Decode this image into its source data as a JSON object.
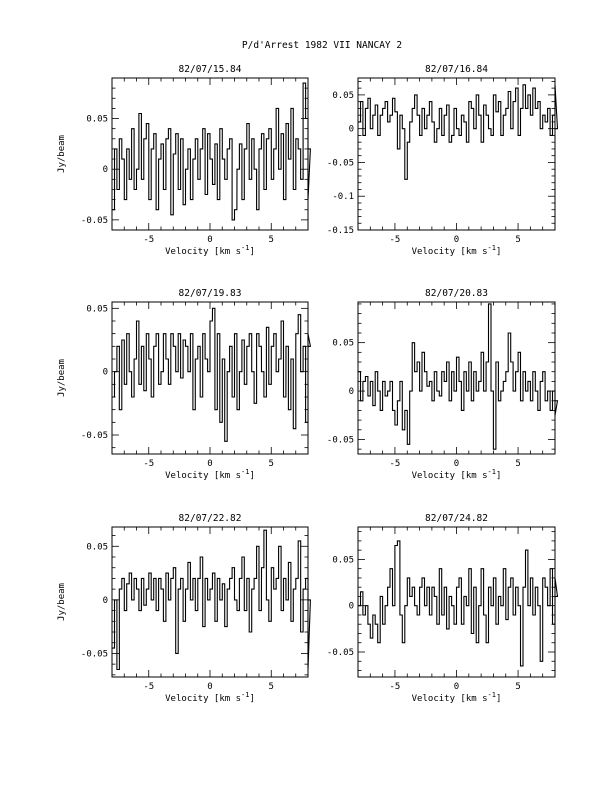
{
  "page_title": "P/d'Arrest 1982 VII   NANCAY      2",
  "chart_data": [
    {
      "type": "line",
      "title": "82/07/15.84",
      "xlabel": "Velocity [km s",
      "xlabel_sup": "-1",
      "xlabel_close": "]",
      "ylabel": "Jy/beam",
      "xlim": [
        -8,
        8
      ],
      "ylim": [
        -0.06,
        0.09
      ],
      "xticks": [
        -5,
        0,
        5
      ],
      "yticks": [
        -0.05,
        0,
        0.05
      ],
      "ytick_labels": [
        "-0.05",
        "0",
        "0.05"
      ],
      "x_start": -8,
      "x_step": 0.2,
      "values": [
        -0.04,
        0.02,
        -0.02,
        0.03,
        0.01,
        -0.03,
        0.02,
        -0.01,
        0.04,
        -0.02,
        0.0,
        0.055,
        -0.01,
        0.03,
        0.045,
        -0.03,
        0.02,
        0.035,
        -0.04,
        0.01,
        0.025,
        -0.02,
        0.03,
        0.04,
        -0.045,
        0.015,
        0.035,
        -0.02,
        0.03,
        -0.035,
        0.0,
        0.02,
        -0.03,
        0.01,
        0.03,
        -0.01,
        0.02,
        0.04,
        -0.025,
        0.035,
        0.01,
        -0.015,
        0.025,
        -0.03,
        0.04,
        0.01,
        -0.01,
        0.02,
        0.03,
        -0.05,
        -0.04,
        0.0,
        0.025,
        -0.03,
        0.02,
        0.045,
        -0.01,
        0.03,
        0.0,
        -0.04,
        0.02,
        0.035,
        -0.02,
        0.03,
        0.04,
        -0.01,
        0.02,
        0.06,
        0.0,
        0.035,
        -0.03,
        0.045,
        0.01,
        0.06,
        -0.02,
        0.03,
        0.02,
        -0.01,
        0.085,
        0.05,
        -0.03,
        0.02
      ]
    },
    {
      "type": "line",
      "title": "82/07/16.84",
      "xlabel": "Velocity [km s",
      "xlabel_sup": "-1",
      "xlabel_close": "]",
      "ylabel": "",
      "xlim": [
        -8,
        8
      ],
      "ylim": [
        -0.15,
        0.075
      ],
      "xticks": [
        -5,
        0,
        5
      ],
      "yticks": [
        -0.15,
        -0.1,
        -0.05,
        0,
        0.05
      ],
      "ytick_labels": [
        "-0.15",
        "-0.1",
        "-0.05",
        "0",
        "0.05"
      ],
      "x_start": -8,
      "x_step": 0.2,
      "values": [
        0.01,
        0.04,
        -0.01,
        0.03,
        0.045,
        0.0,
        0.02,
        0.035,
        -0.01,
        0.02,
        0.03,
        0.04,
        0.01,
        0.02,
        0.045,
        0.025,
        -0.03,
        0.02,
        0.0,
        -0.075,
        -0.02,
        0.01,
        0.03,
        0.05,
        0.02,
        -0.01,
        0.03,
        0.0,
        0.02,
        0.04,
        0.01,
        -0.02,
        0.0,
        0.03,
        -0.01,
        0.02,
        0.035,
        -0.02,
        -0.01,
        0.03,
        0.0,
        -0.01,
        0.02,
        0.01,
        -0.02,
        0.04,
        0.03,
        0.0,
        0.05,
        0.02,
        -0.02,
        0.035,
        0.02,
        0.0,
        -0.01,
        0.05,
        0.025,
        0.04,
        -0.01,
        0.02,
        0.03,
        0.055,
        0.0,
        0.04,
        0.06,
        -0.01,
        0.03,
        0.065,
        0.03,
        0.05,
        0.02,
        0.06,
        0.03,
        0.04,
        0.0,
        0.02,
        0.01,
        0.03,
        -0.01,
        0.02,
        0.065,
        0.0
      ]
    },
    {
      "type": "line",
      "title": "82/07/19.83",
      "xlabel": "Velocity [km s",
      "xlabel_sup": "-1",
      "xlabel_close": "]",
      "ylabel": "Jy/beam",
      "xlim": [
        -8,
        8
      ],
      "ylim": [
        -0.065,
        0.055
      ],
      "xticks": [
        -5,
        0,
        5
      ],
      "yticks": [
        -0.05,
        0,
        0.05
      ],
      "ytick_labels": [
        "-0.05",
        "0",
        "0.05"
      ],
      "x_start": -8,
      "x_step": 0.2,
      "values": [
        -0.02,
        0.0,
        0.02,
        -0.03,
        0.025,
        -0.01,
        0.03,
        0.0,
        -0.02,
        0.01,
        0.04,
        -0.01,
        0.02,
        -0.015,
        0.03,
        0.01,
        -0.02,
        0.02,
        0.03,
        -0.01,
        0.0,
        0.03,
        0.01,
        -0.01,
        0.03,
        0.02,
        0.0,
        0.03,
        -0.005,
        0.025,
        0.02,
        0.0,
        0.03,
        -0.03,
        0.01,
        0.02,
        -0.02,
        0.03,
        0.01,
        0.0,
        0.04,
        0.05,
        -0.03,
        0.03,
        -0.04,
        0.01,
        -0.055,
        0.0,
        0.02,
        -0.02,
        0.03,
        -0.03,
        0.0,
        0.025,
        -0.01,
        0.02,
        0.03,
        0.0,
        -0.025,
        0.03,
        0.02,
        0.0,
        -0.02,
        0.035,
        -0.01,
        0.02,
        0.03,
        0.0,
        0.01,
        0.04,
        -0.02,
        0.02,
        -0.03,
        0.01,
        -0.045,
        0.03,
        0.045,
        0.0,
        0.02,
        -0.04,
        0.03,
        0.02
      ]
    },
    {
      "type": "line",
      "title": "82/07/20.83",
      "xlabel": "Velocity [km s",
      "xlabel_sup": "-1",
      "xlabel_close": "]",
      "ylabel": "",
      "xlim": [
        -8,
        8
      ],
      "ylim": [
        -0.065,
        0.092
      ],
      "xticks": [
        -5,
        0,
        5
      ],
      "yticks": [
        -0.05,
        0,
        0.05
      ],
      "ytick_labels": [
        "-0.05",
        "0",
        "0.05"
      ],
      "x_start": -8,
      "x_step": 0.2,
      "values": [
        0.02,
        -0.01,
        0.01,
        0.015,
        -0.005,
        0.01,
        -0.015,
        0.02,
        0.0,
        -0.02,
        0.01,
        -0.005,
        0.0,
        0.01,
        -0.02,
        -0.035,
        -0.01,
        0.01,
        -0.04,
        -0.02,
        -0.055,
        0.0,
        0.05,
        0.02,
        0.03,
        0.0,
        0.04,
        0.02,
        0.005,
        0.01,
        -0.01,
        0.02,
        0.0,
        -0.005,
        0.02,
        0.01,
        0.03,
        -0.01,
        0.02,
        0.0,
        0.035,
        0.01,
        -0.02,
        0.02,
        0.0,
        0.03,
        -0.01,
        0.02,
        0.0,
        0.01,
        0.04,
        0.0,
        0.03,
        0.09,
        0.0,
        -0.06,
        0.03,
        -0.01,
        0.0,
        0.01,
        0.02,
        0.06,
        0.03,
        0.0,
        0.02,
        0.04,
        -0.01,
        0.02,
        0.0,
        0.01,
        -0.01,
        0.02,
        0.0,
        -0.02,
        0.01,
        0.02,
        -0.01,
        0.0,
        -0.02,
        0.0,
        -0.025,
        -0.01
      ]
    },
    {
      "type": "line",
      "title": "82/07/22.82",
      "xlabel": "Velocity [km s",
      "xlabel_sup": "-1",
      "xlabel_close": "]",
      "ylabel": "Jy/beam",
      "xlim": [
        -8,
        8
      ],
      "ylim": [
        -0.072,
        0.068
      ],
      "xticks": [
        -5,
        0,
        5
      ],
      "yticks": [
        -0.05,
        0,
        0.05
      ],
      "ytick_labels": [
        "-0.05",
        "0",
        "0.05"
      ],
      "x_start": -8,
      "x_step": 0.2,
      "values": [
        -0.045,
        0.0,
        -0.065,
        0.01,
        0.02,
        -0.01,
        0.015,
        0.025,
        0.0,
        0.02,
        0.01,
        -0.01,
        0.02,
        -0.005,
        0.01,
        0.025,
        0.0,
        0.02,
        -0.01,
        0.02,
        0.01,
        -0.02,
        0.025,
        0.0,
        0.02,
        0.03,
        -0.05,
        0.01,
        0.02,
        -0.02,
        0.01,
        0.035,
        0.0,
        0.02,
        -0.01,
        0.02,
        0.04,
        -0.025,
        0.02,
        0.0,
        0.01,
        0.025,
        -0.02,
        0.02,
        0.0,
        0.015,
        -0.025,
        0.01,
        0.02,
        0.03,
        0.0,
        -0.01,
        0.02,
        0.04,
        -0.01,
        0.02,
        -0.03,
        0.01,
        0.02,
        0.05,
        -0.01,
        0.03,
        0.065,
        0.0,
        -0.02,
        0.03,
        0.01,
        0.02,
        0.05,
        -0.01,
        0.02,
        0.0,
        0.035,
        -0.02,
        0.01,
        0.02,
        0.055,
        -0.03,
        0.01,
        0.02,
        -0.065,
        0.0
      ]
    },
    {
      "type": "line",
      "title": "82/07/24.82",
      "xlabel": "Velocity [km s",
      "xlabel_sup": "-1",
      "xlabel_close": "]",
      "ylabel": "",
      "xlim": [
        -8,
        8
      ],
      "ylim": [
        -0.077,
        0.085
      ],
      "xticks": [
        -5,
        0,
        5
      ],
      "yticks": [
        -0.05,
        0,
        0.05
      ],
      "ytick_labels": [
        "-0.05",
        "0",
        "0.05"
      ],
      "x_start": -8,
      "x_step": 0.2,
      "values": [
        0.0,
        0.015,
        -0.01,
        0.0,
        -0.02,
        -0.035,
        -0.01,
        -0.02,
        -0.04,
        0.01,
        -0.02,
        0.0,
        0.02,
        0.04,
        0.0,
        0.065,
        0.07,
        -0.01,
        -0.04,
        0.0,
        0.03,
        0.01,
        0.02,
        0.0,
        -0.01,
        0.02,
        0.03,
        0.0,
        0.02,
        -0.01,
        0.02,
        0.01,
        -0.02,
        0.04,
        -0.01,
        0.02,
        -0.025,
        0.01,
        0.0,
        -0.02,
        0.02,
        0.03,
        -0.02,
        0.01,
        0.0,
        0.04,
        -0.03,
        0.02,
        -0.04,
        0.0,
        0.04,
        -0.01,
        -0.04,
        0.02,
        0.0,
        0.03,
        -0.02,
        0.01,
        0.0,
        0.04,
        -0.015,
        0.02,
        0.03,
        -0.01,
        0.02,
        0.0,
        -0.065,
        0.02,
        0.06,
        0.0,
        0.03,
        -0.01,
        0.02,
        0.0,
        -0.06,
        0.03,
        0.02,
        0.0,
        0.04,
        -0.02,
        0.03,
        0.01
      ]
    }
  ]
}
